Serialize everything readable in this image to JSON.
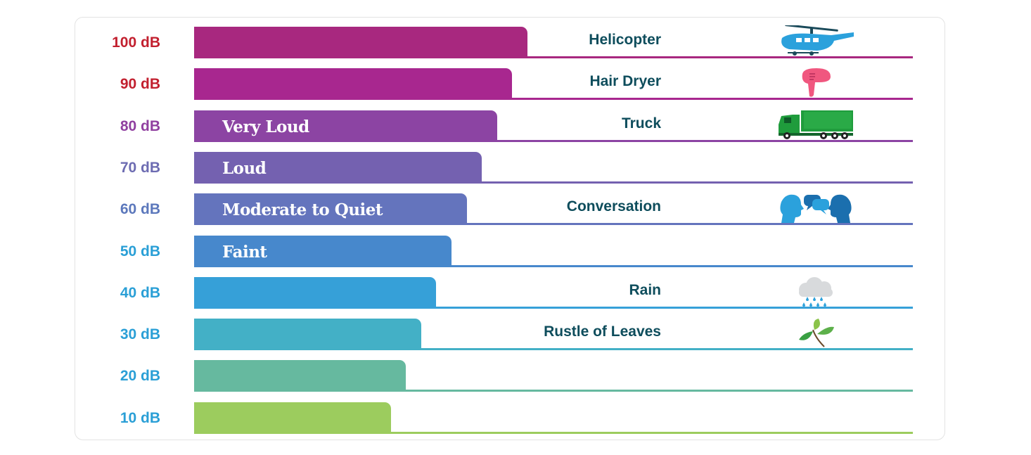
{
  "chart_data": {
    "type": "bar",
    "orientation": "horizontal",
    "title": "",
    "categories": [
      "100 dB",
      "90 dB",
      "80 dB",
      "70 dB",
      "60 dB",
      "50 dB",
      "40 dB",
      "30 dB",
      "20 dB",
      "10 dB"
    ],
    "values": [
      100,
      90,
      80,
      70,
      60,
      50,
      40,
      30,
      20,
      10
    ],
    "level_labels": [
      "",
      "",
      "Very Loud",
      "Loud",
      "Moderate to Quiet",
      "Faint",
      "",
      "",
      "",
      ""
    ],
    "examples": [
      "Helicopter",
      "Hair Dryer",
      "Truck",
      "",
      "Conversation",
      "",
      "Rain",
      "Rustle of Leaves",
      "",
      ""
    ],
    "icons": [
      "helicopter-icon",
      "hair-dryer-icon",
      "truck-icon",
      "",
      "conversation-icon",
      "",
      "rain-cloud-icon",
      "leaves-icon",
      "",
      ""
    ],
    "colors": [
      "#a8287f",
      "#a8278f",
      "#8c44a3",
      "#7461b0",
      "#6474bd",
      "#4788cc",
      "#36a0d8",
      "#43b0c6",
      "#66b99f",
      "#9ccc5e"
    ],
    "label_colors": [
      "#c2202f",
      "#c2202f",
      "#9040a0",
      "#6d6cb2",
      "#5c78bc",
      "#2a9fd6",
      "#2a9fd6",
      "#2a9fd6",
      "#2a9fd6",
      "#2a9fd6"
    ]
  }
}
